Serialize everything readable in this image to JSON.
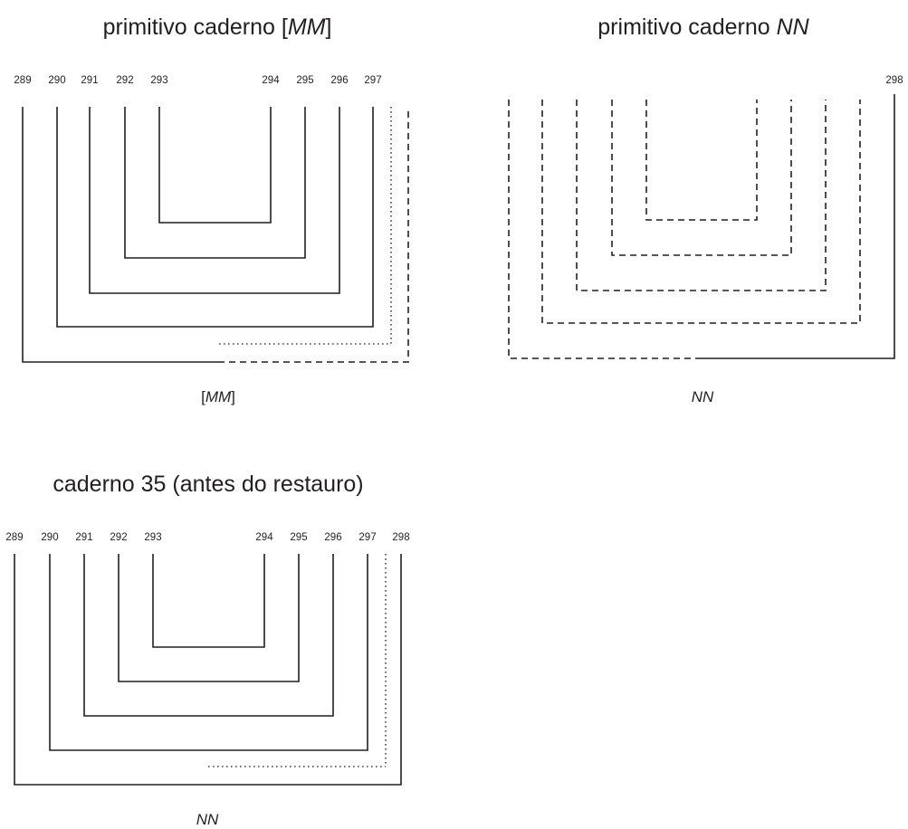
{
  "panels": [
    {
      "id": "primitive-mm",
      "title_parts": [
        {
          "text": "primitivo caderno [",
          "italic": false
        },
        {
          "text": "MM",
          "italic": true
        },
        {
          "text": "]",
          "italic": false
        }
      ],
      "leaf_numbers": [
        "289",
        "290",
        "291",
        "292",
        "293",
        "294",
        "295",
        "296",
        "297"
      ],
      "signature_parts": [
        {
          "text": "[",
          "italic": false
        },
        {
          "text": "MM",
          "italic": true
        },
        {
          "text": "]",
          "italic": false
        }
      ],
      "line_styles": [
        "solid",
        "solid",
        "solid",
        "solid",
        "solid",
        "mixed-dotted",
        "mixed-dashed"
      ]
    },
    {
      "id": "primitive-nn",
      "title_parts": [
        {
          "text": "primitivo caderno ",
          "italic": false
        },
        {
          "text": "NN",
          "italic": true
        }
      ],
      "leaf_numbers": [
        "298"
      ],
      "signature_parts": [
        {
          "text": "NN",
          "italic": true
        }
      ],
      "line_styles": [
        "dashed",
        "dashed",
        "dashed",
        "dashed",
        "dashed",
        "mixed-solid-right"
      ]
    },
    {
      "id": "caderno-35",
      "title_parts": [
        {
          "text": "caderno 35 (antes do restauro)",
          "italic": false
        }
      ],
      "leaf_numbers": [
        "289",
        "290",
        "291",
        "292",
        "293",
        "294",
        "295",
        "296",
        "297",
        "298"
      ],
      "signature_parts": [
        {
          "text": "NN",
          "italic": true
        }
      ],
      "line_styles": [
        "solid",
        "solid",
        "solid",
        "solid",
        "solid",
        "mixed-dotted",
        "solid"
      ]
    }
  ]
}
